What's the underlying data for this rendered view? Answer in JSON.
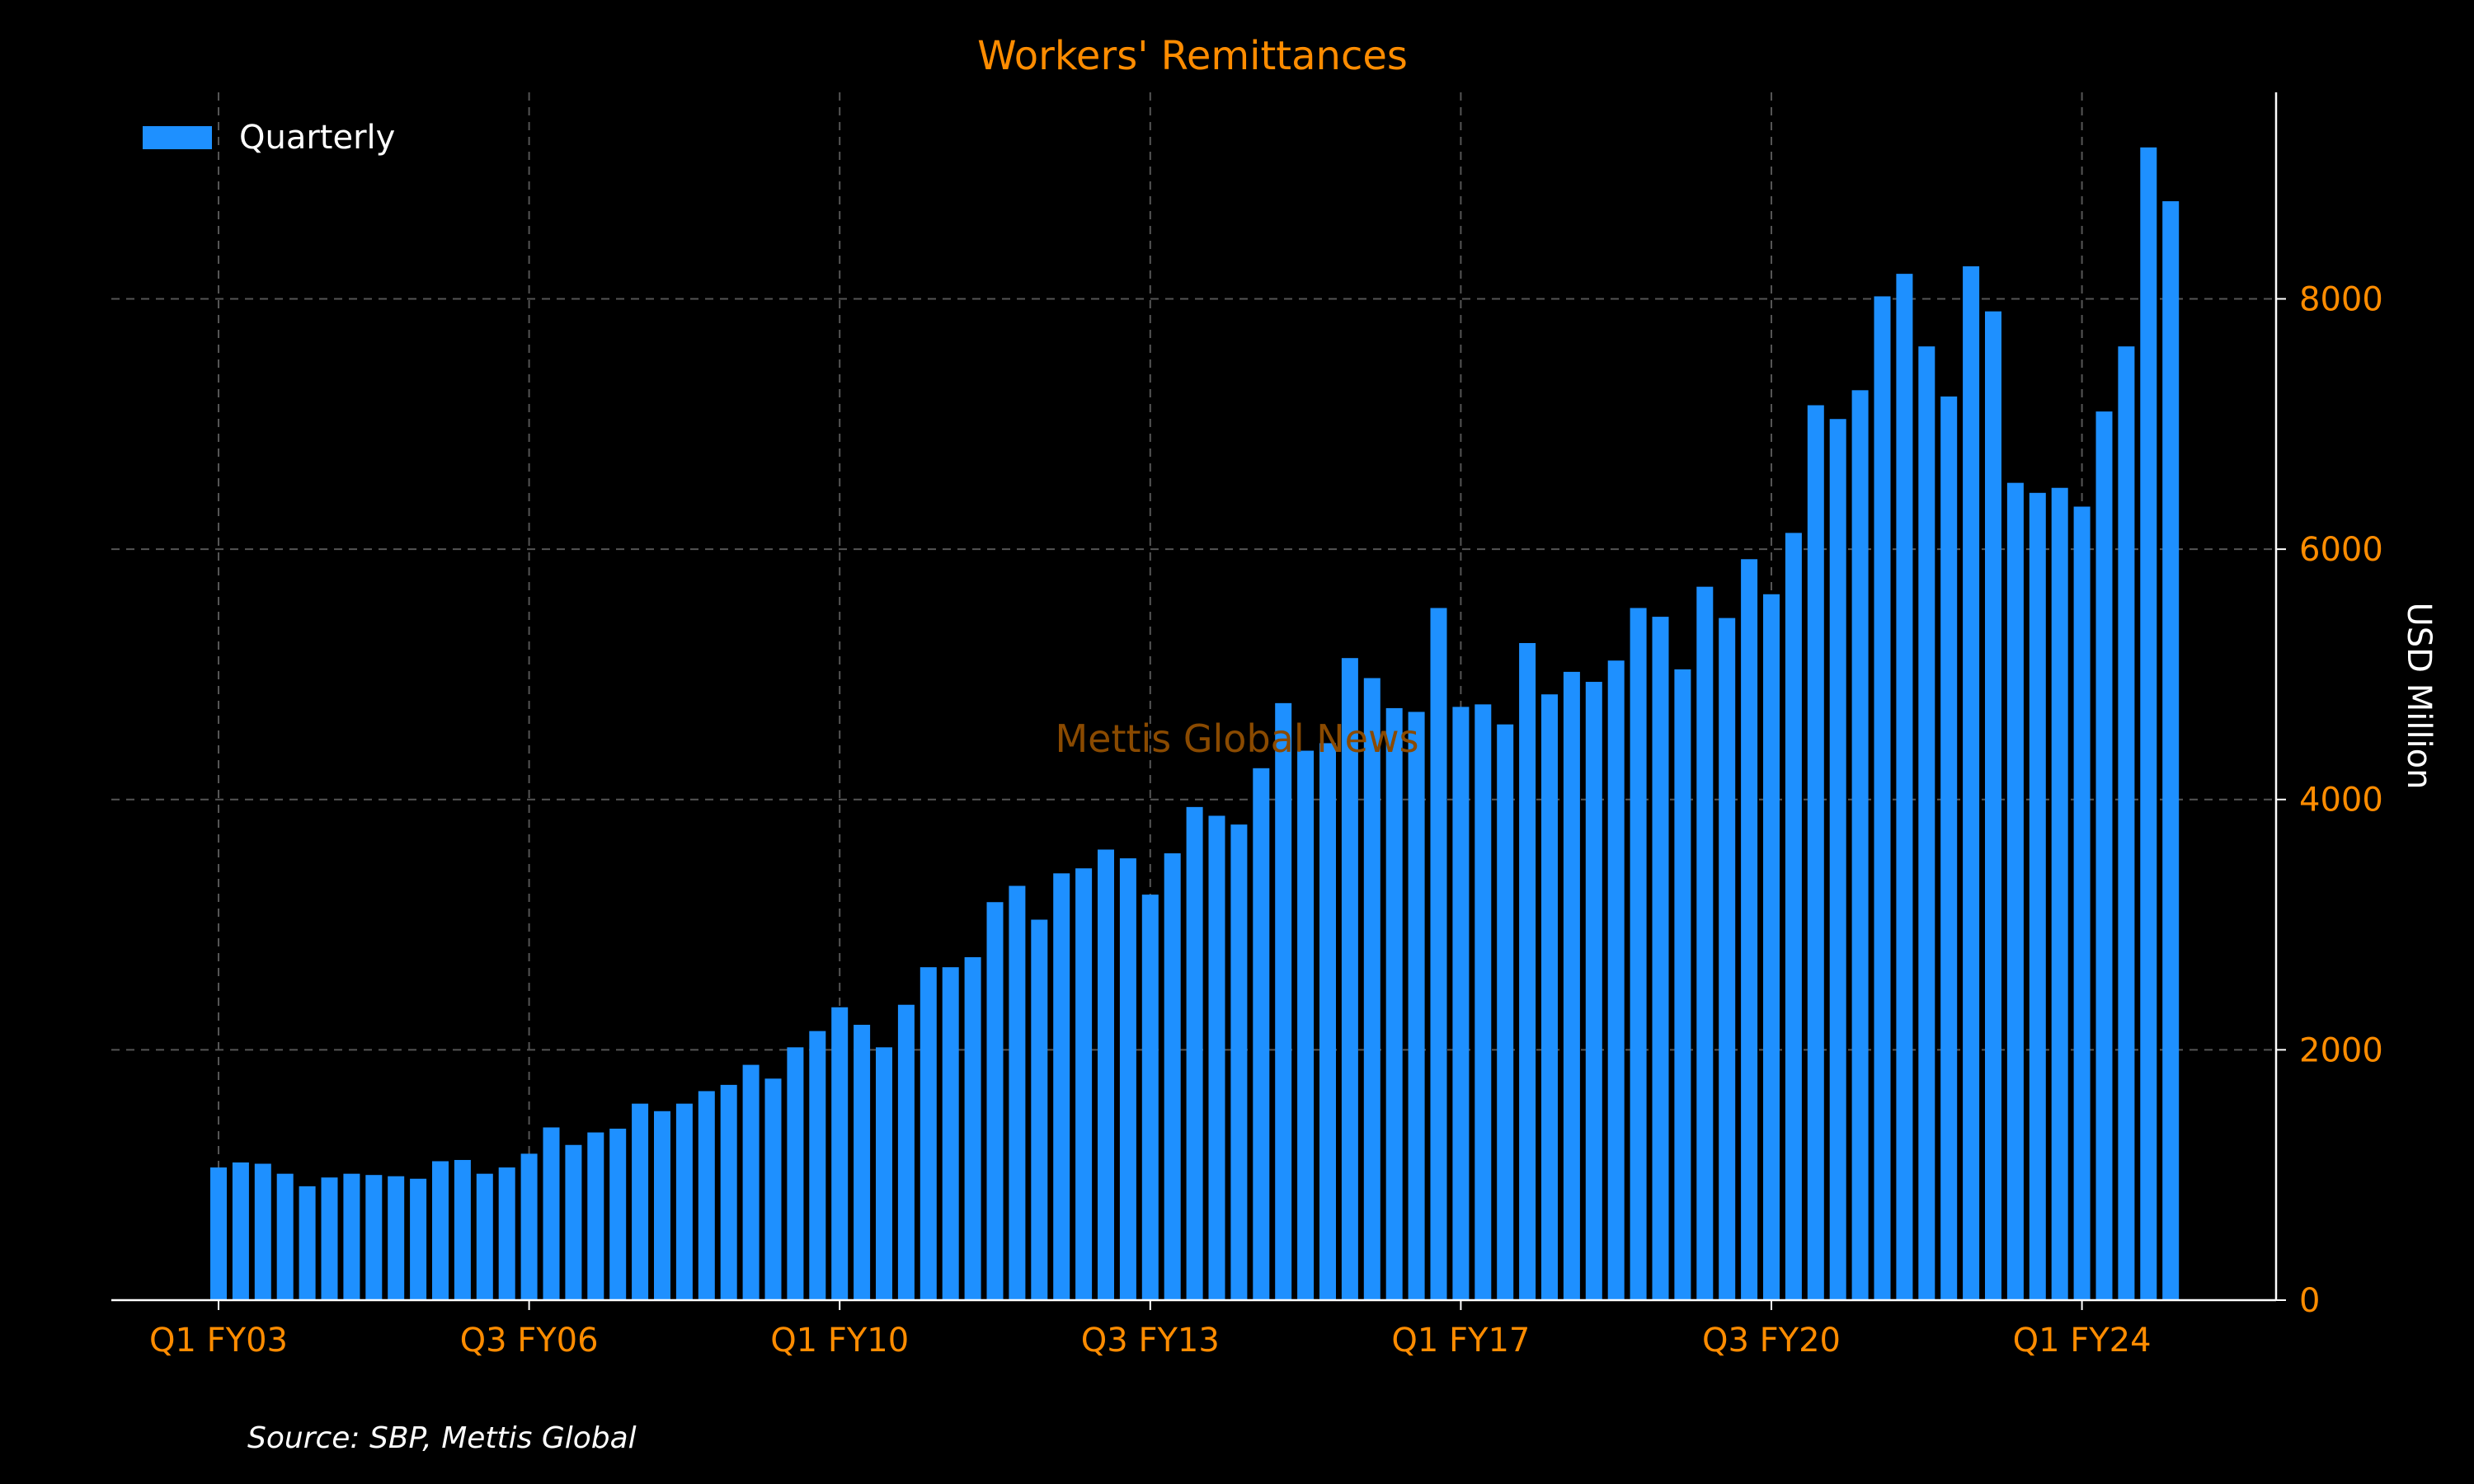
{
  "colors": {
    "background": "#000000",
    "bar": "#1e90ff",
    "title": "#ff8c00",
    "tick_labels": "#ff8c00",
    "axis_label": "#ffffff",
    "legend_text": "#ffffff",
    "watermark": "#8a4a00",
    "grid": "#555555"
  },
  "watermark": "Mettis Global News",
  "source": "Source: SBP, Mettis Global",
  "chart_data": {
    "type": "bar",
    "title": "Workers' Remittances",
    "xlabel": "",
    "ylabel": "USD Million",
    "ylim": [
      0,
      9650
    ],
    "y_ticks": [
      0,
      2000,
      4000,
      6000,
      8000
    ],
    "y_axis_position": "right",
    "x_tick_labels": [
      "Q1 FY03",
      "Q3 FY06",
      "Q1 FY10",
      "Q3 FY13",
      "Q1 FY17",
      "Q3 FY20",
      "Q1 FY24"
    ],
    "x_tick_every": 14,
    "grid": true,
    "legend_position": "top-left",
    "series": [
      {
        "name": "Quarterly",
        "values": [
          1060,
          1100,
          1090,
          1010,
          910,
          980,
          1010,
          1000,
          990,
          970,
          1110,
          1120,
          1010,
          1060,
          1170,
          1380,
          1240,
          1340,
          1370,
          1570,
          1510,
          1570,
          1670,
          1720,
          1880,
          1770,
          2020,
          2150,
          2340,
          2200,
          2020,
          2360,
          2660,
          2660,
          2740,
          3180,
          3310,
          3040,
          3410,
          3450,
          3600,
          3530,
          3240,
          3570,
          3940,
          3870,
          3800,
          4250,
          4770,
          4390,
          4450,
          5130,
          4970,
          4730,
          4700,
          5530,
          4740,
          4760,
          4600,
          5250,
          4840,
          5020,
          4940,
          5110,
          5530,
          5460,
          5040,
          5700,
          5450,
          5920,
          5640,
          6130,
          7150,
          7040,
          7270,
          8020,
          8200,
          7620,
          7220,
          8260,
          7900,
          6530,
          6450,
          6490,
          6340,
          7100,
          7620,
          9210,
          8780
        ]
      }
    ]
  }
}
